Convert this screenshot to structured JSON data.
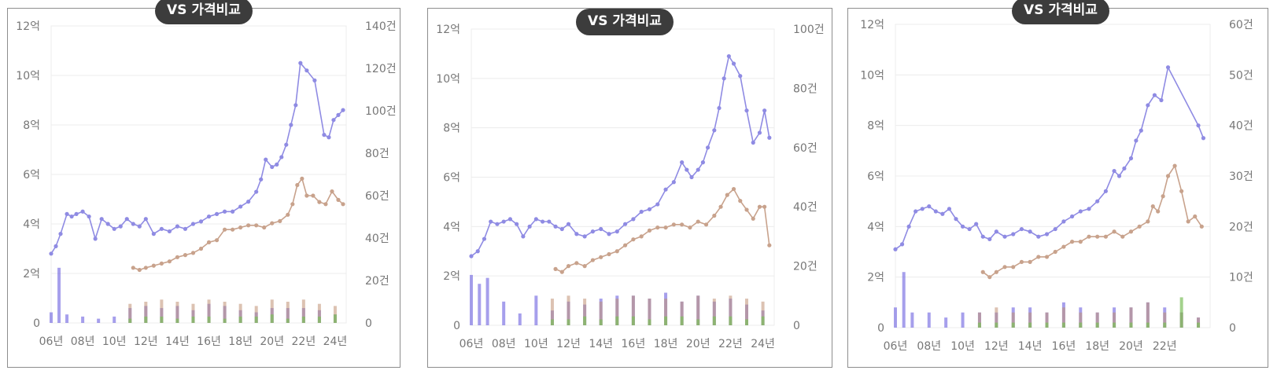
{
  "colors": {
    "price": "#8f8be3",
    "count_primary": "#c8a28c",
    "volume_blue": "#6b5fe0",
    "volume_brown": "#bf8f72",
    "volume_green": "#7cbf5b",
    "badge_bg": "#3c3c3c"
  },
  "chart_data": [
    {
      "type": "line",
      "title": "VS 가격비교",
      "x_tick_labels": [
        "06년",
        "08년",
        "10년",
        "12년",
        "14년",
        "16년",
        "18년",
        "20년",
        "22년",
        "24년"
      ],
      "x_range": [
        2006,
        2024.7
      ],
      "y_left_tick_labels": [
        "0",
        "2억",
        "4억",
        "6억",
        "8억",
        "10억",
        "12억"
      ],
      "y_left_range": [
        0,
        12
      ],
      "y_right_tick_labels": [
        "0",
        "20건",
        "40건",
        "60건",
        "80건",
        "100건",
        "120건",
        "140건"
      ],
      "y_right_range": [
        0,
        140
      ],
      "series": [
        {
          "x": [
            2006,
            2006.3,
            2006.6,
            2007,
            2007.3,
            2007.6,
            2008,
            2008.4,
            2008.8,
            2009.2,
            2009.6,
            2010,
            2010.4,
            2010.8,
            2011.2,
            2011.6,
            2012,
            2012.5,
            2013,
            2013.5,
            2014,
            2014.5,
            2015,
            2015.5,
            2016,
            2016.5,
            2017,
            2017.5,
            2018,
            2018.5,
            2019,
            2019.3,
            2019.6,
            2020,
            2020.3,
            2020.6,
            2020.9,
            2021.2,
            2021.5,
            2021.8,
            2022.2,
            2022.7,
            2023.3,
            2023.6,
            2023.9,
            2024.2,
            2024.5
          ],
          "y": [
            2.8,
            3.1,
            3.6,
            4.4,
            4.3,
            4.4,
            4.5,
            4.3,
            3.4,
            4.2,
            4.0,
            3.8,
            3.9,
            4.2,
            4.0,
            3.9,
            4.2,
            3.6,
            3.8,
            3.7,
            3.9,
            3.8,
            4.0,
            4.1,
            4.3,
            4.4,
            4.5,
            4.5,
            4.7,
            4.9,
            5.3,
            5.8,
            6.6,
            6.3,
            6.4,
            6.7,
            7.2,
            8.0,
            8.8,
            10.5,
            10.2,
            9.8,
            7.6,
            7.5,
            8.2,
            8.4,
            8.6
          ]
        },
        {
          "x": [
            2011.2,
            2011.6,
            2012,
            2012.5,
            2013,
            2013.5,
            2014,
            2014.5,
            2015,
            2015.5,
            2016,
            2016.5,
            2017,
            2017.5,
            2018,
            2018.5,
            2019,
            2019.5,
            2020,
            2020.5,
            2021,
            2021.3,
            2021.6,
            2021.9,
            2022.2,
            2022.6,
            2023,
            2023.4,
            2023.8,
            2024.2,
            2024.5
          ],
          "y": [
            26,
            25,
            26,
            27,
            28,
            29,
            31,
            32,
            33,
            35,
            38,
            39,
            44,
            44,
            45,
            46,
            46,
            45,
            47,
            48,
            51,
            56,
            65,
            68,
            60,
            60,
            57,
            56,
            62,
            58,
            56
          ]
        },
        {
          "x": [
            2006,
            2006.5,
            2007,
            2008,
            2009,
            2010,
            2011,
            2012,
            2013,
            2014,
            2015,
            2016,
            2017,
            2018,
            2019,
            2020,
            2021,
            2022,
            2023,
            2024
          ],
          "y": [
            5,
            26,
            4,
            3,
            2,
            3,
            7,
            8,
            7,
            8,
            6,
            9,
            8,
            6,
            5,
            7,
            7,
            7,
            6,
            4
          ]
        },
        {
          "x": [
            2011,
            2012,
            2013,
            2014,
            2015,
            2016,
            2017,
            2018,
            2019,
            2020,
            2021,
            2022,
            2023,
            2024
          ],
          "y": [
            9,
            10,
            11,
            10,
            9,
            11,
            10,
            9,
            8,
            11,
            10,
            11,
            9,
            8
          ]
        },
        {
          "x": [
            2011,
            2012,
            2013,
            2014,
            2015,
            2016,
            2017,
            2018,
            2019,
            2020,
            2021,
            2022,
            2023,
            2024
          ],
          "y": [
            2,
            3,
            3,
            2,
            3,
            3,
            2,
            3,
            3,
            4,
            2,
            3,
            3,
            4
          ]
        }
      ]
    },
    {
      "type": "line",
      "title": "VS 가격비교",
      "x_tick_labels": [
        "06년",
        "08년",
        "10년",
        "12년",
        "14년",
        "16년",
        "18년",
        "20년",
        "22년",
        "24년"
      ],
      "x_range": [
        2006,
        2024.7
      ],
      "y_left_tick_labels": [
        "0",
        "2억",
        "4억",
        "6억",
        "8억",
        "10억",
        "12억"
      ],
      "y_left_range": [
        0,
        12
      ],
      "y_right_tick_labels": [
        "0",
        "20건",
        "40건",
        "60건",
        "80건",
        "100건"
      ],
      "y_right_range": [
        0,
        100
      ],
      "series": [
        {
          "x": [
            2006,
            2006.4,
            2006.8,
            2007.2,
            2007.6,
            2008,
            2008.4,
            2008.8,
            2009.2,
            2009.6,
            2010,
            2010.4,
            2010.8,
            2011.2,
            2011.6,
            2012,
            2012.5,
            2013,
            2013.5,
            2014,
            2014.5,
            2015,
            2015.5,
            2016,
            2016.5,
            2017,
            2017.5,
            2018,
            2018.5,
            2019,
            2019.3,
            2019.6,
            2020,
            2020.3,
            2020.6,
            2021,
            2021.3,
            2021.6,
            2021.9,
            2022.2,
            2022.6,
            2023,
            2023.4,
            2023.8,
            2024.1,
            2024.4
          ],
          "y": [
            2.8,
            3.0,
            3.5,
            4.2,
            4.1,
            4.2,
            4.3,
            4.1,
            3.6,
            4.0,
            4.3,
            4.2,
            4.2,
            4.0,
            3.9,
            4.1,
            3.7,
            3.6,
            3.8,
            3.9,
            3.7,
            3.8,
            4.1,
            4.3,
            4.6,
            4.7,
            4.9,
            5.5,
            5.8,
            6.6,
            6.3,
            6.0,
            6.3,
            6.6,
            7.2,
            7.9,
            8.8,
            10.0,
            10.9,
            10.6,
            10.1,
            8.7,
            7.4,
            7.8,
            8.7,
            7.6
          ]
        },
        {
          "x": [
            2011.2,
            2011.6,
            2012,
            2012.5,
            2013,
            2013.5,
            2014,
            2014.5,
            2015,
            2015.5,
            2016,
            2016.5,
            2017,
            2017.5,
            2018,
            2018.5,
            2019,
            2019.5,
            2020,
            2020.5,
            2021,
            2021.4,
            2021.8,
            2022.2,
            2022.6,
            2023,
            2023.4,
            2023.8,
            2024.1,
            2024.4
          ],
          "y": [
            19,
            18,
            20,
            21,
            20,
            22,
            23,
            24,
            25,
            27,
            29,
            30,
            32,
            33,
            33,
            34,
            34,
            33,
            35,
            34,
            37,
            40,
            44,
            46,
            42,
            39,
            36,
            40,
            40,
            27
          ]
        },
        {
          "x": [
            2006,
            2006.5,
            2007,
            2008,
            2009,
            2010,
            2011,
            2012,
            2013,
            2014,
            2015,
            2016,
            2017,
            2018,
            2019,
            2020,
            2021,
            2022,
            2023,
            2024
          ],
          "y": [
            17,
            14,
            16,
            8,
            4,
            10,
            5,
            8,
            7,
            9,
            10,
            10,
            9,
            11,
            8,
            10,
            8,
            9,
            7,
            5
          ]
        },
        {
          "x": [
            2011,
            2012,
            2013,
            2014,
            2015,
            2016,
            2017,
            2018,
            2019,
            2020,
            2021,
            2022,
            2023,
            2024
          ],
          "y": [
            9,
            10,
            9,
            8,
            9,
            10,
            9,
            9,
            8,
            10,
            9,
            10,
            9,
            8
          ]
        },
        {
          "x": [
            2011,
            2012,
            2013,
            2014,
            2015,
            2016,
            2017,
            2018,
            2019,
            2020,
            2021,
            2022,
            2023,
            2024
          ],
          "y": [
            2,
            2,
            3,
            2,
            3,
            3,
            2,
            3,
            3,
            2,
            3,
            3,
            2,
            3
          ]
        }
      ]
    },
    {
      "type": "line",
      "title": "VS 가격비교",
      "x_tick_labels": [
        "06년",
        "08년",
        "10년",
        "12년",
        "14년",
        "16년",
        "18년",
        "20년",
        "22년"
      ],
      "x_range": [
        2006,
        2024.7
      ],
      "y_left_tick_labels": [
        "0",
        "2억",
        "4억",
        "6억",
        "8억",
        "10억",
        "12억"
      ],
      "y_left_range": [
        0,
        12
      ],
      "y_right_tick_labels": [
        "0",
        "10건",
        "20건",
        "30건",
        "40건",
        "50건",
        "60건"
      ],
      "y_right_range": [
        0,
        60
      ],
      "series": [
        {
          "x": [
            2006,
            2006.4,
            2006.8,
            2007.2,
            2007.6,
            2008,
            2008.4,
            2008.8,
            2009.2,
            2009.6,
            2010,
            2010.4,
            2010.8,
            2011.2,
            2011.6,
            2012,
            2012.5,
            2013,
            2013.5,
            2014,
            2014.5,
            2015,
            2015.5,
            2016,
            2016.5,
            2017,
            2017.5,
            2018,
            2018.5,
            2019,
            2019.3,
            2019.6,
            2020,
            2020.3,
            2020.6,
            2021,
            2021.4,
            2021.8,
            2022.2,
            2024,
            2024.3
          ],
          "y": [
            3.1,
            3.3,
            4.0,
            4.6,
            4.7,
            4.8,
            4.6,
            4.5,
            4.7,
            4.3,
            4.0,
            3.9,
            4.1,
            3.6,
            3.5,
            3.8,
            3.6,
            3.7,
            3.9,
            3.8,
            3.6,
            3.7,
            3.9,
            4.2,
            4.4,
            4.6,
            4.7,
            5.0,
            5.4,
            6.2,
            6.0,
            6.3,
            6.7,
            7.4,
            7.8,
            8.8,
            9.2,
            9.0,
            10.3,
            8.0,
            7.5
          ]
        },
        {
          "x": [
            2011.2,
            2011.6,
            2012,
            2012.5,
            2013,
            2013.5,
            2014,
            2014.5,
            2015,
            2015.5,
            2016,
            2016.5,
            2017,
            2017.5,
            2018,
            2018.5,
            2019,
            2019.5,
            2020,
            2020.5,
            2021,
            2021.3,
            2021.6,
            2021.9,
            2022.2,
            2022.6,
            2023,
            2023.4,
            2023.8,
            2024.2
          ],
          "y": [
            11,
            10,
            11,
            12,
            12,
            13,
            13,
            14,
            14,
            15,
            16,
            17,
            17,
            18,
            18,
            18,
            19,
            18,
            19,
            20,
            21,
            24,
            23,
            26,
            30,
            32,
            27,
            21,
            22,
            20
          ]
        },
        {
          "x": [
            2006,
            2006.5,
            2007,
            2008,
            2009,
            2010,
            2011,
            2012,
            2013,
            2014,
            2015,
            2016,
            2017,
            2018,
            2019,
            2020,
            2021,
            2022,
            2023,
            2024
          ],
          "y": [
            4,
            11,
            3,
            3,
            2,
            3,
            3,
            3,
            4,
            4,
            3,
            5,
            4,
            3,
            4,
            4,
            5,
            4,
            3,
            2
          ]
        },
        {
          "x": [
            2011,
            2012,
            2013,
            2014,
            2015,
            2016,
            2017,
            2018,
            2019,
            2020,
            2021,
            2022,
            2023,
            2024
          ],
          "y": [
            3,
            4,
            3,
            3,
            3,
            4,
            3,
            3,
            3,
            4,
            5,
            3,
            3,
            2
          ]
        },
        {
          "x": [
            2011,
            2012,
            2013,
            2014,
            2015,
            2016,
            2017,
            2018,
            2019,
            2020,
            2021,
            2022,
            2023,
            2024
          ],
          "y": [
            1,
            1,
            1,
            1,
            1,
            1,
            1,
            1,
            1,
            1,
            1,
            1,
            6,
            1
          ]
        }
      ]
    }
  ]
}
